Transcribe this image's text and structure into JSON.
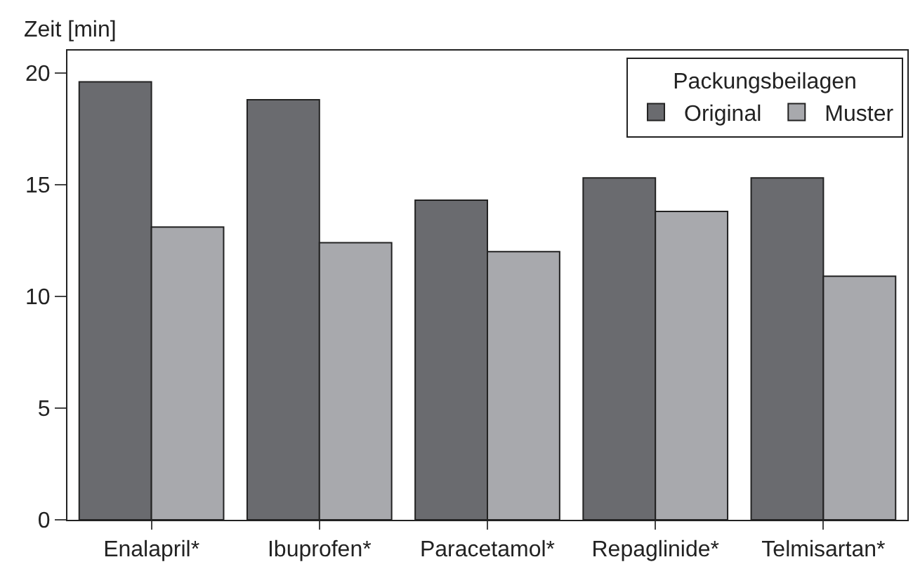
{
  "chart_data": {
    "type": "bar",
    "ylabel": "Zeit [min]",
    "legend_title": "Packungsbeilagen",
    "categories": [
      "Enalapril*",
      "Ibuprofen*",
      "Paracetamol*",
      "Repaglinide*",
      "Telmisartan*"
    ],
    "series": [
      {
        "name": "Original",
        "color": "#6a6b6f",
        "values": [
          19.6,
          18.8,
          14.3,
          15.3,
          15.3
        ]
      },
      {
        "name": "Muster",
        "color": "#a8a9ad",
        "values": [
          13.1,
          12.4,
          12.0,
          13.8,
          10.9
        ]
      }
    ],
    "ylim": [
      0,
      21
    ],
    "yticks": [
      0,
      5,
      10,
      15,
      20
    ],
    "legend": "top right"
  }
}
